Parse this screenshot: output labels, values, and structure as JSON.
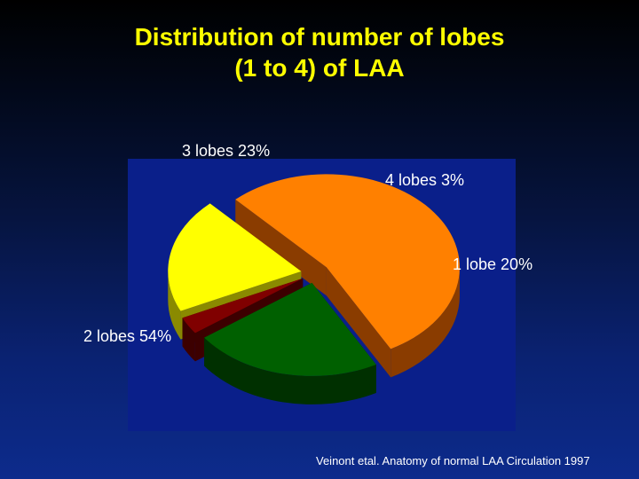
{
  "title": [
    "Distribution of number of lobes",
    "(1 to 4) of LAA"
  ],
  "chart_data": {
    "type": "pie",
    "three_d": true,
    "title": "Distribution of number of lobes (1 to 4) of LAA",
    "slices": [
      {
        "label": "1 lobe 20%",
        "category": "1 lobe",
        "value": 20,
        "color": "#ffff00",
        "side_color": "#8a8a00"
      },
      {
        "label": "2 lobes 54%",
        "category": "2 lobes",
        "value": 54,
        "color": "#ff8000",
        "side_color": "#8a3c00"
      },
      {
        "label": "3 lobes 23%",
        "category": "3 lobes",
        "value": 23,
        "color": "#006000",
        "side_color": "#003000"
      },
      {
        "label": "4 lobes 3%",
        "category": "4 lobes",
        "value": 3,
        "color": "#800000",
        "side_color": "#3c0000"
      }
    ],
    "exploded": true,
    "legend": "none",
    "plot_background": "#0a1f8a"
  },
  "citation": "Veinont etal. Anatomy of normal LAA Circulation 1997"
}
